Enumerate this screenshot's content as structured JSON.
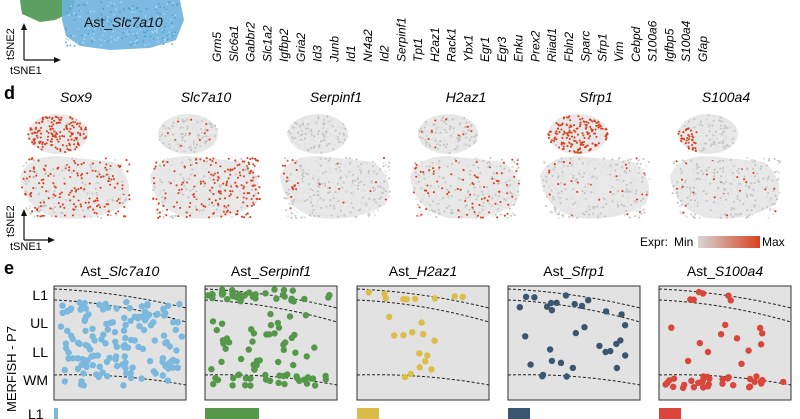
{
  "top": {
    "cluster_label_prefix": "Ast_",
    "cluster_label_gene": "Slc7a10",
    "axis_y": "tSNE2",
    "axis_x": "tSNE1",
    "gene_list": [
      "Grm5",
      "Slc6a1",
      "Gabbr2",
      "Slc1a2",
      "Igfbp2",
      "Gria2",
      "Id3",
      "Junb",
      "Id1",
      "Nr4a2",
      "Id2",
      "Serpinf1",
      "Tpt1",
      "H2az1",
      "Rack1",
      "Ybx1",
      "Egr1",
      "Egr3",
      "Enku",
      "Prex2",
      "Riiad1",
      "Fbln2",
      "Sparc",
      "Sfrp1",
      "Vim",
      "Cebpd",
      "S100a6",
      "Igfbp5",
      "S100a4",
      "Gfap"
    ]
  },
  "panel_d": {
    "letter": "d",
    "genes": [
      "Sox9",
      "Slc7a10",
      "Serpinf1",
      "H2az1",
      "Sfrp1",
      "S100a4"
    ],
    "axis_y": "tSNE2",
    "axis_x": "tSNE1",
    "legend_label": "Expr:",
    "legend_min": "Min",
    "legend_max": "Max",
    "colors": {
      "low": "#d6d6d6",
      "high": "#d8401f"
    }
  },
  "panel_e": {
    "letter": "e",
    "row_label": "MERFISH - P7",
    "layers": [
      "L1",
      "UL",
      "LL",
      "WM"
    ],
    "bottom_layer_label": "L1",
    "panels": [
      {
        "prefix": "Ast_",
        "gene": "Slc7a10",
        "color": "#7ab8de"
      },
      {
        "prefix": "Ast_",
        "gene": "Serpinf1",
        "color": "#55984a"
      },
      {
        "prefix": "Ast_",
        "gene": "H2az1",
        "color": "#dcbd4a"
      },
      {
        "prefix": "Ast_",
        "gene": "Sfrp1",
        "color": "#3c5670"
      },
      {
        "prefix": "Ast_",
        "gene": "S100a4",
        "color": "#d9463c"
      }
    ]
  }
}
